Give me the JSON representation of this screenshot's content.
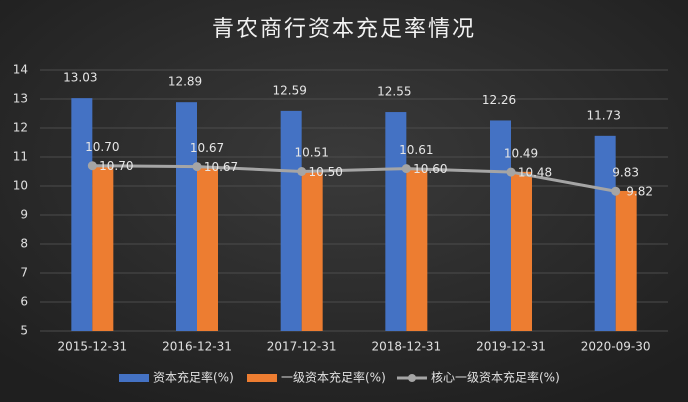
{
  "chart_data": {
    "type": "bar-line",
    "title": "青农商行资本充足率情况",
    "categories": [
      "2015-12-31",
      "2016-12-31",
      "2017-12-31",
      "2018-12-31",
      "2019-12-31",
      "2020-09-30"
    ],
    "series": [
      {
        "name": "资本充足率(%)",
        "type": "bar",
        "color": "#4472c4",
        "values": [
          13.03,
          12.89,
          12.59,
          12.55,
          12.26,
          11.73
        ],
        "value_labels": [
          "13.03",
          "12.89",
          "12.59",
          "12.55",
          "12.26",
          "11.73"
        ]
      },
      {
        "name": "一级资本充足率(%)",
        "type": "bar",
        "color": "#ed7d31",
        "values": [
          10.7,
          10.67,
          10.51,
          10.61,
          10.49,
          9.83
        ],
        "value_labels": [
          "10.70",
          "10.67",
          "10.51",
          "10.61",
          "10.49",
          "9.83"
        ]
      },
      {
        "name": "核心一级资本充足率(%)",
        "type": "line",
        "color": "#a5a5a5",
        "values": [
          10.7,
          10.67,
          10.5,
          10.6,
          10.48,
          9.82
        ],
        "value_labels": [
          "10.70",
          "10.67",
          "10.50",
          "10.60",
          "10.48",
          "9.82"
        ]
      }
    ],
    "ylim": [
      5,
      14
    ],
    "yticks": [
      5,
      6,
      7,
      8,
      9,
      10,
      11,
      12,
      13,
      14
    ],
    "grid": true,
    "legend": "bottom"
  }
}
